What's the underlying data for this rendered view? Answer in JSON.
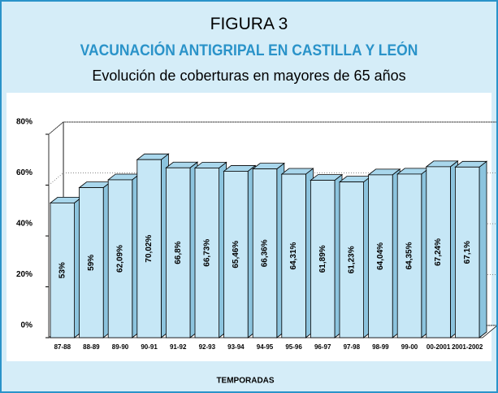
{
  "chart_data": {
    "type": "bar",
    "title": "FIGURA 3",
    "subtitle": "VACUNACIÓN ANTIGRIPAL EN CASTILLA Y LEÓN",
    "subtitle2": "Evolución de coberturas en mayores de 65 años",
    "x_label": "TEMPORADAS",
    "categories": [
      "87-88",
      "88-89",
      "89-90",
      "90-91",
      "91-92",
      "92-93",
      "93-94",
      "94-95",
      "95-96",
      "96-97",
      "97-98",
      "98-99",
      "99-00",
      "00-2001",
      "2001-2002"
    ],
    "values": [
      53,
      59,
      62.09,
      70.02,
      66.8,
      66.73,
      65.46,
      66.36,
      64.31,
      61.89,
      61.23,
      64.04,
      64.35,
      67.24,
      67.1
    ],
    "value_labels": [
      "53%",
      "59%",
      "62,09%",
      "70,02%",
      "66,8%",
      "66,73%",
      "65,46%",
      "66,36%",
      "64,31%",
      "61,89%",
      "61,23%",
      "64,04%",
      "64,35%",
      "67,24%",
      "67,1%"
    ],
    "color": "#c6e7f6",
    "ylim": [
      0,
      80
    ],
    "yticks": [
      {
        "value": 0,
        "label": "0%"
      },
      {
        "value": 20,
        "label": "20%"
      },
      {
        "value": 40,
        "label": "40%"
      },
      {
        "value": 60,
        "label": "60%"
      },
      {
        "value": 80,
        "label": "80%"
      }
    ],
    "grid": true
  }
}
